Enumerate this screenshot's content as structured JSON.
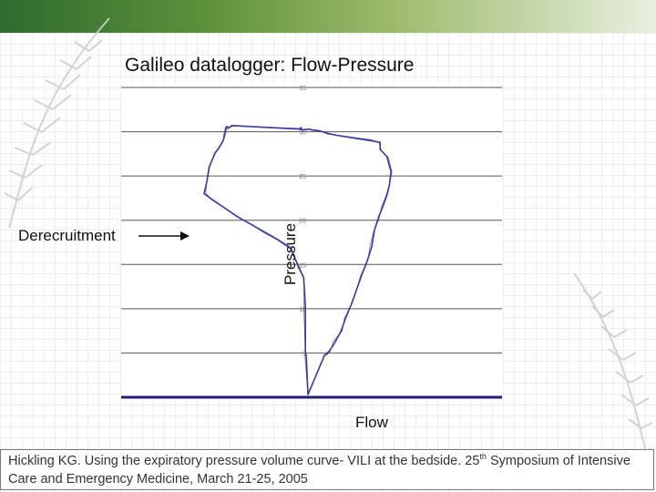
{
  "slide": {
    "title": "Galileo datalogger: Flow-Pressure",
    "annotation": "Derecruitment",
    "citation": {
      "part1": "Hickling KG. Using the expiratory pressure volume curve- VILI at the bedside. 25",
      "sup": "th",
      "part2": " Symposium of Intensive Care and Emergency Medicine, March 21-25, 2005"
    }
  },
  "colors": {
    "curve": "#3a3aa0",
    "baseline": "#1f1f7a",
    "gridline": "#555555",
    "background_band_dark": "#2e6b2e",
    "background_band_light": "#e8efe0"
  },
  "chart_data": {
    "type": "line",
    "title": "Galileo datalogger: Flow-Pressure",
    "xlabel": "Flow",
    "ylabel": "Pressure",
    "yticks": [
      0,
      5,
      10,
      15,
      20,
      25,
      30,
      35
    ],
    "ytick_labels": [
      "",
      "5",
      "10",
      "15",
      "20",
      "25",
      "30",
      "35"
    ],
    "ylim": [
      0,
      35
    ],
    "grid": "horizontal",
    "series": [
      {
        "values_note_units": "pressure",
        "x": [
          0,
          2,
          3,
          3,
          5,
          10,
          20,
          35,
          50,
          65,
          80,
          95,
          110,
          120,
          126,
          130,
          142,
          150,
          158,
          162,
          164,
          166,
          168,
          171,
          174,
          175,
          176,
          178,
          178,
          188,
          190,
          200,
          210,
          220,
          240,
          260,
          272,
          272,
          280,
          285,
          283,
          280,
          275,
          270,
          265,
          262,
          257,
          250,
          244,
          238,
          231,
          225,
          218,
          212,
          208,
          206,
          205
        ],
        "y": [
          0.3,
          4.7,
          5.1,
          10.2,
          13.5,
          14.6,
          16.8,
          17.8,
          18.6,
          19.5,
          20.3,
          21.3,
          22.3,
          23.0,
          24.5,
          26.0,
          27.6,
          28.2,
          29.0,
          29.8,
          30.5,
          30.6,
          30.4,
          30.5,
          30.6,
          30.7,
          30.3,
          30.4,
          30.2,
          30.3,
          30.2,
          30.1,
          29.8,
          29.6,
          29.3,
          29.0,
          28.8,
          28.0,
          27.2,
          25.5,
          24.0,
          22.8,
          21.5,
          20.3,
          18.8,
          17.0,
          15.5,
          13.8,
          12.2,
          10.6,
          9.0,
          7.4,
          6.2,
          5.3,
          4.9,
          4.8,
          4.6
        ]
      }
    ]
  }
}
